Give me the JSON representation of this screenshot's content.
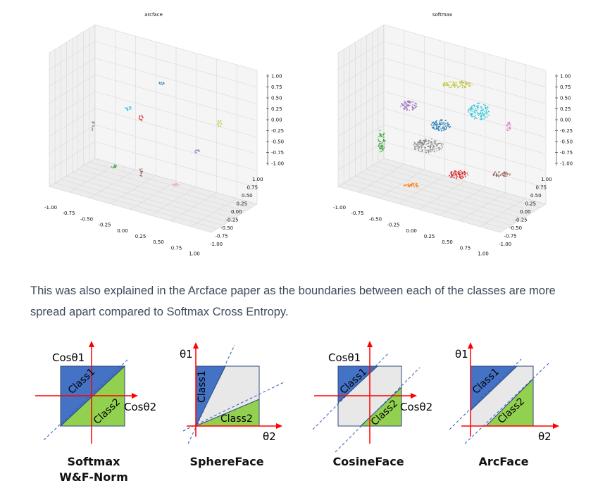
{
  "plots": {
    "left": {
      "title": "arcface",
      "z_ticks": [
        "1.00",
        "0.75",
        "0.50",
        "0.25",
        "0.00",
        "-0.25",
        "-0.50",
        "-0.75",
        "-1.00"
      ],
      "x_ticks": [
        "-1.00",
        "-0.75",
        "-0.50",
        "-0.25",
        "0.00",
        "0.25",
        "0.50",
        "0.75",
        "1.00"
      ],
      "y_ticks": [
        "1.00",
        "0.75",
        "0.50",
        "0.25",
        "0.00",
        "-0.25",
        "-0.50",
        "-0.75",
        "-1.00"
      ]
    },
    "right": {
      "title": "softmax",
      "z_ticks": [
        "1.00",
        "0.75",
        "0.50",
        "0.25",
        "0.00",
        "-0.25",
        "-0.50",
        "-0.75",
        "-1.00"
      ],
      "x_ticks": [
        "-1.00",
        "-0.75",
        "-0.50",
        "-0.25",
        "0.00",
        "0.25",
        "0.50",
        "0.75",
        "1.00"
      ],
      "y_ticks": [
        "1.00",
        "0.75",
        "0.50",
        "0.25",
        "0.00",
        "-0.25",
        "-0.50",
        "-0.75",
        "-1.00"
      ]
    }
  },
  "paragraph": "This was also explained in the Arcface paper as the boundaries between each of the classes are more spread apart compared to Softmax Cross Entropy.",
  "diagrams": [
    {
      "caption_line1": "Softmax",
      "caption_line2": "W&F-Norm",
      "y_axis": "Cosθ1",
      "x_axis": "Cosθ2",
      "class1": "Class1",
      "class2": "Class2"
    },
    {
      "caption_line1": "SphereFace",
      "y_axis": "θ1",
      "x_axis": "θ2",
      "class1": "Class1",
      "class2": "Class2"
    },
    {
      "caption_line1": "CosineFace",
      "y_axis": "Cosθ1",
      "x_axis": "Cosθ2",
      "class1": "Class1",
      "class2": "Class2"
    },
    {
      "caption_line1": "ArcFace",
      "y_axis": "θ1",
      "x_axis": "θ2",
      "class1": "Class1",
      "class2": "Class2"
    }
  ],
  "colors": {
    "class1": "#4472c4",
    "class2": "#92d050",
    "margin": "#e8e8e8",
    "axis": "#ff0000",
    "dash": "#2f5fb0"
  }
}
